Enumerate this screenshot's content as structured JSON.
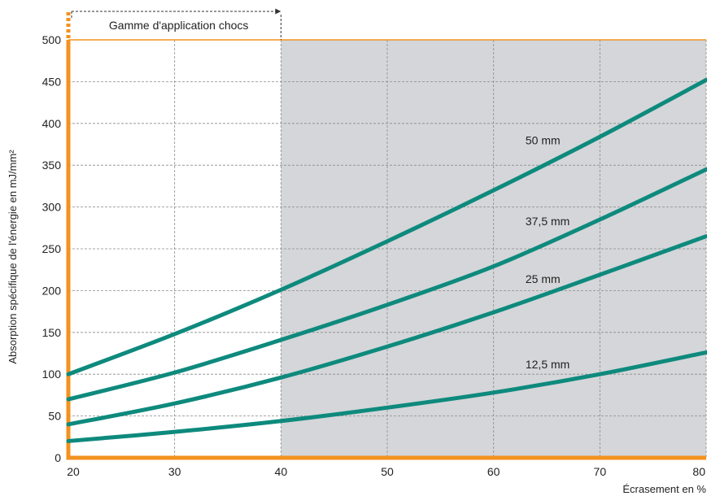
{
  "chart_data": {
    "type": "line",
    "title": "",
    "xlabel": "Écrasement en %",
    "ylabel": "Absorption spécifique de l'énergie en mJ/mm²",
    "xlim": [
      20,
      80
    ],
    "ylim": [
      0,
      500
    ],
    "x_ticks": [
      20,
      30,
      40,
      50,
      60,
      70,
      80
    ],
    "y_ticks": [
      0,
      50,
      100,
      150,
      200,
      250,
      300,
      350,
      400,
      450,
      500
    ],
    "grid": true,
    "x": [
      20,
      30,
      40,
      50,
      60,
      70,
      80
    ],
    "series": [
      {
        "name": "50 mm",
        "values": [
          100,
          148,
          201,
          259,
          320,
          384,
          452
        ]
      },
      {
        "name": "37,5 mm",
        "values": [
          70,
          102,
          141,
          183,
          229,
          285,
          345
        ]
      },
      {
        "name": "25 mm",
        "values": [
          40,
          65,
          96,
          133,
          174,
          219,
          265
        ]
      },
      {
        "name": "12,5 mm",
        "values": [
          20,
          31,
          44,
          60,
          78,
          100,
          126
        ]
      }
    ],
    "shaded_region": {
      "x_from": 40,
      "x_to": 80,
      "color": "#d4d6d9"
    },
    "annotation": {
      "text": "Gamme d'application chocs",
      "x_from": 20,
      "x_to": 40
    },
    "colors": {
      "series": "#0e8a7d",
      "axis": "#f3921f",
      "grid": "#8a8a8a"
    }
  }
}
